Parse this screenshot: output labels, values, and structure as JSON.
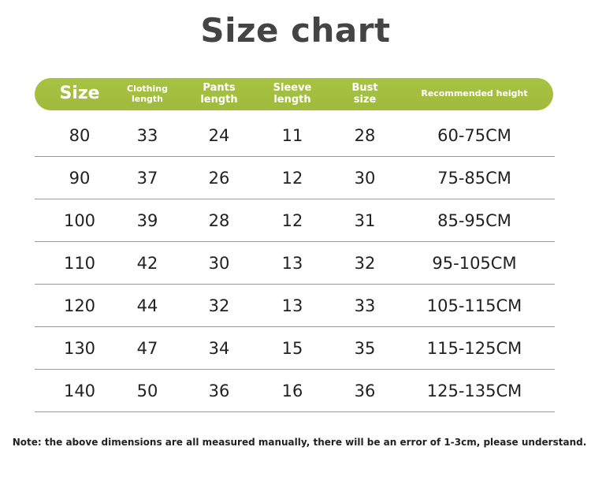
{
  "title": "Size chart",
  "header_color": "#a0ba3c",
  "columns": [
    "Size",
    "Clothing\nlength",
    "Pants\nlength",
    "Sleeve\nlength",
    "Bust\nsize",
    "Recommended height"
  ],
  "rows": [
    [
      "80",
      "33",
      "24",
      "11",
      "28",
      "60-75CM"
    ],
    [
      "90",
      "37",
      "26",
      "12",
      "30",
      "75-85CM"
    ],
    [
      "100",
      "39",
      "28",
      "12",
      "31",
      "85-95CM"
    ],
    [
      "110",
      "42",
      "30",
      "13",
      "32",
      "95-105CM"
    ],
    [
      "120",
      "44",
      "32",
      "13",
      "33",
      "105-115CM"
    ],
    [
      "130",
      "47",
      "34",
      "15",
      "35",
      "115-125CM"
    ],
    [
      "140",
      "50",
      "36",
      "16",
      "36",
      "125-135CM"
    ]
  ],
  "note": "Note: the above dimensions are all measured manually, there will be an error of 1-3cm, please understand."
}
